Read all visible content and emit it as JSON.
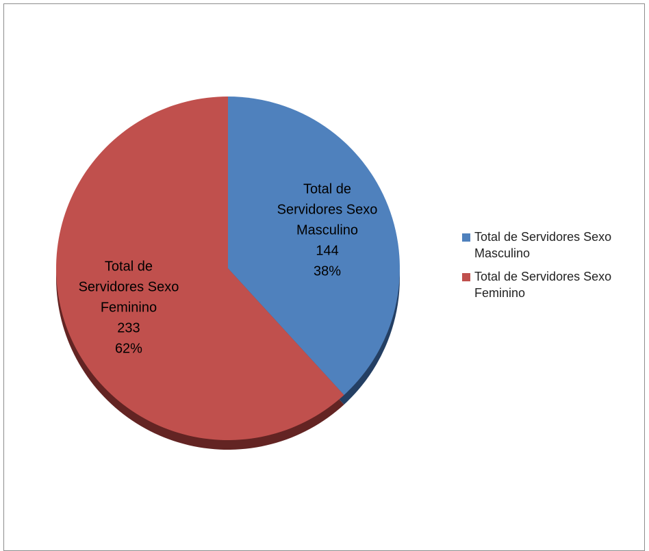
{
  "chart_data": {
    "type": "pie",
    "slices": [
      {
        "label": [
          "Total de",
          "Servidores Sexo",
          "Masculino"
        ],
        "legend": "Total de Servidores Sexo Masculino",
        "value": 144,
        "percent": "38%",
        "color": "#4f81bd",
        "shade": "#243f63"
      },
      {
        "label": [
          "Total de",
          "Servidores Sexo",
          "Feminino"
        ],
        "legend": "Total de Servidores Sexo Feminino",
        "value": 233,
        "percent": "62%",
        "color": "#c0504d",
        "shade": "#632423"
      }
    ],
    "legend_position": "right",
    "start_angle": "top",
    "direction": "clockwise"
  }
}
